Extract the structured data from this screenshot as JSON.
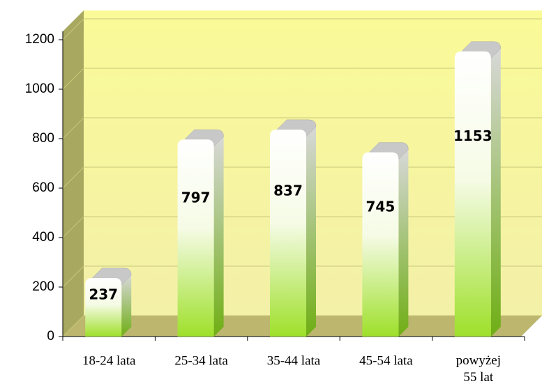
{
  "chart_data": {
    "type": "bar3d",
    "categories": [
      "18-24 lata",
      "25-34 lata",
      "35-44 lata",
      "45-54 lata",
      "powyżej\n55 lat"
    ],
    "values": [
      237,
      797,
      837,
      745,
      1153
    ],
    "ylim": [
      0,
      1200
    ],
    "yticks": [
      0,
      200,
      400,
      600,
      800,
      1000,
      1200
    ],
    "grid": true
  }
}
